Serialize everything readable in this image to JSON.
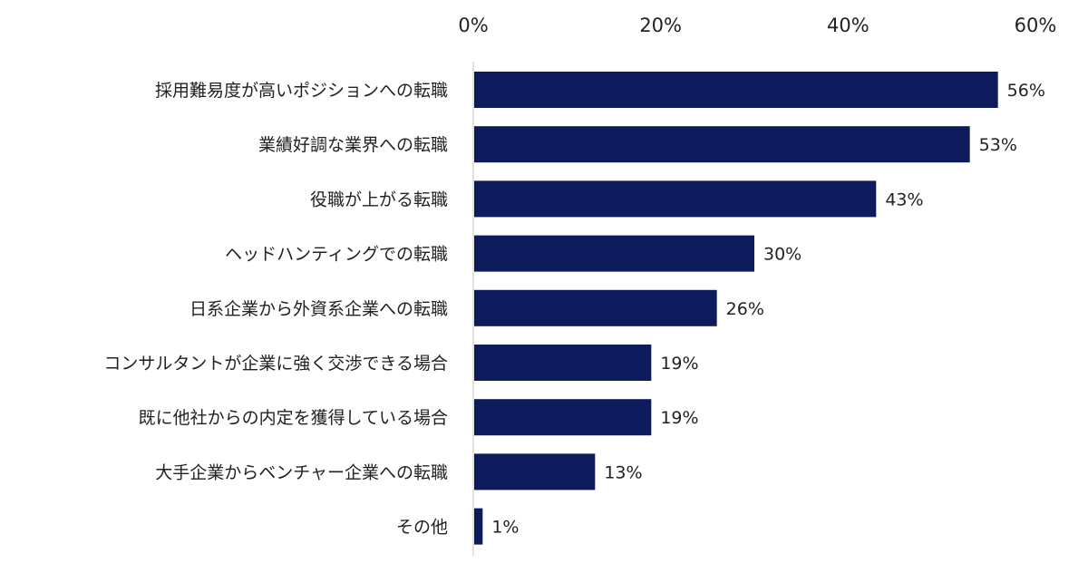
{
  "chart_data": {
    "type": "bar",
    "orientation": "horizontal",
    "categories": [
      "採用難易度が高いポジションへの転職",
      "業績好調な業界への転職",
      "役職が上がる転職",
      "ヘッドハンティングでの転職",
      "日系企業から外資系企業への転職",
      "コンサルタントが企業に強く交渉できる場合",
      "既に他社からの内定を獲得している場合",
      "大手企業からベンチャー企業への転職",
      "その他"
    ],
    "values": [
      56,
      53,
      43,
      30,
      26,
      19,
      19,
      13,
      1
    ],
    "value_labels": [
      "56%",
      "53%",
      "43%",
      "30%",
      "26%",
      "19%",
      "19%",
      "13%",
      "1%"
    ],
    "xlim": [
      0,
      60
    ],
    "xticks": [
      0,
      20,
      40,
      60
    ],
    "xtick_labels": [
      "0%",
      "20%",
      "40%",
      "60%"
    ],
    "x_axis_position": "top",
    "grid": false,
    "legend": "none",
    "bar_color": "#0d1a5c"
  }
}
